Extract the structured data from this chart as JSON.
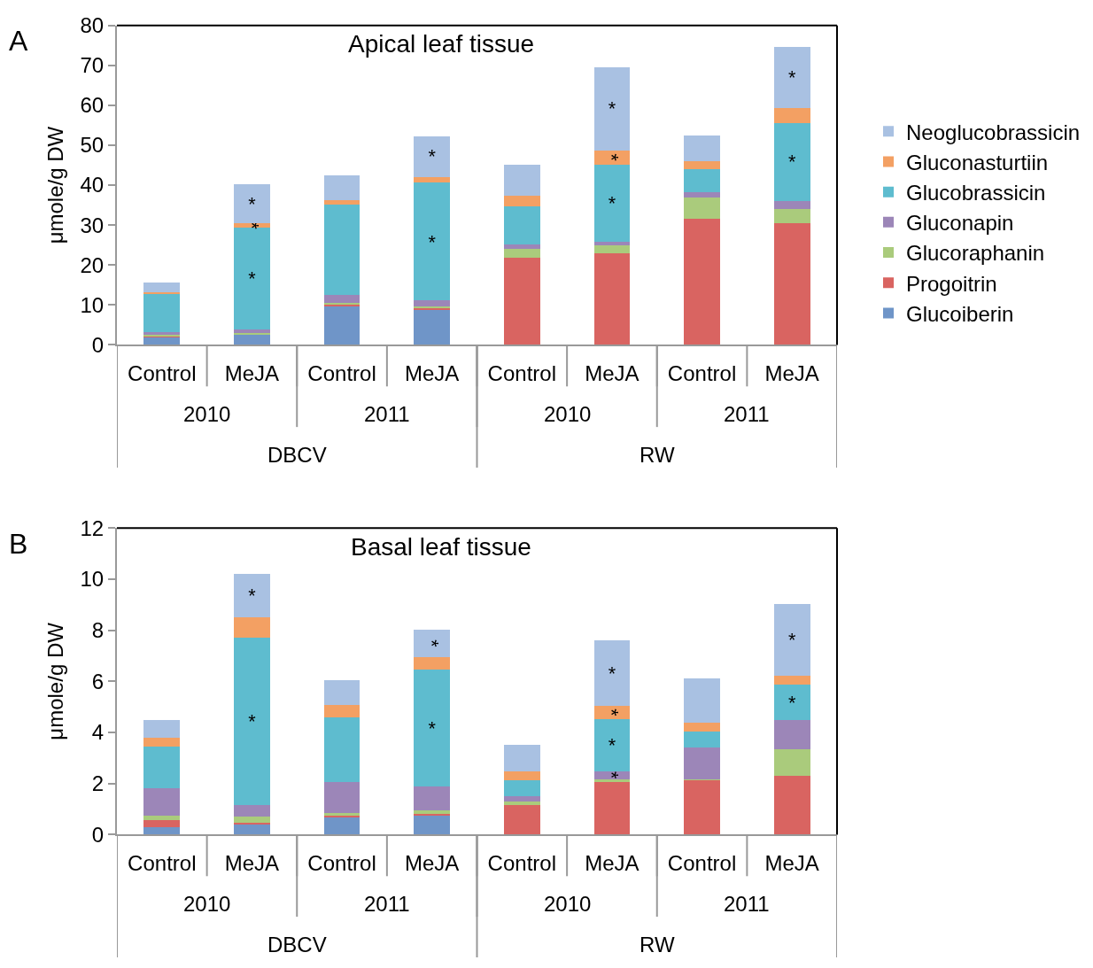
{
  "chart_data": [
    {
      "type": "bar",
      "title": "Apical leaf tissue",
      "ylabel": "μmole/g DW",
      "stacked": true,
      "legend": "right",
      "ylim": [
        0,
        80
      ],
      "yticks": [
        0,
        10,
        20,
        30,
        40,
        50,
        60,
        70,
        80
      ],
      "categories": [
        "Control",
        "MeJA",
        "Control",
        "MeJA",
        "Control",
        "MeJA",
        "Control",
        "MeJA"
      ],
      "annotations": [
        "A",
        "2010",
        "2011",
        "2010",
        "2011",
        "DBCV",
        "RW"
      ],
      "series": [
        {
          "name": "Glucoiberin",
          "color": "#6f95c8",
          "values": [
            2.0,
            2.7,
            9.6,
            9.0,
            0,
            0,
            0,
            0
          ],
          "value_labels": [
            null,
            null,
            null,
            null,
            null,
            null,
            null,
            null
          ]
        },
        {
          "name": "Progoitrin",
          "color": "#d96461",
          "values": [
            0.1,
            null,
            0.5,
            0.4,
            21.9,
            22.9,
            31.6,
            30.5
          ],
          "value_labels": [
            null,
            null,
            null,
            null,
            null,
            null,
            null,
            null
          ]
        },
        {
          "name": "Glucoraphanin",
          "color": "#aacb7c",
          "values": [
            0.5,
            0.2,
            0.5,
            0.3,
            2.2,
            2.1,
            5.4,
            3.5
          ],
          "value_labels": [
            null,
            null,
            null,
            null,
            null,
            null,
            null,
            null
          ]
        },
        {
          "name": "Gluconapin",
          "color": "#9c86b8",
          "values": [
            0.7,
            0.9,
            2.0,
            1.4,
            1.1,
            0.9,
            1.2,
            2.1
          ],
          "value_labels": [
            null,
            null,
            null,
            null,
            null,
            null,
            null,
            null
          ]
        },
        {
          "name": "Glucobrassicin",
          "color": "#5ebccf",
          "values": [
            9.4,
            25.6,
            22.5,
            29.5,
            9.6,
            19.3,
            5.9,
            19.5
          ],
          "value_labels": [
            null,
            "*",
            null,
            "*",
            null,
            "*",
            null,
            "*"
          ]
        },
        {
          "name": "Gluconasturtiin",
          "color": "#f3a063",
          "values": [
            0.5,
            1.0,
            1.2,
            1.5,
            2.5,
            3.5,
            2.0,
            3.6
          ],
          "value_labels": [
            null,
            "*",
            null,
            null,
            null,
            "*",
            null,
            null
          ]
        },
        {
          "name": "Neoglucobrassicin",
          "color": "#a9c1e2",
          "values": [
            2.4,
            9.9,
            6.1,
            10.2,
            7.9,
            20.9,
            6.3,
            15.4
          ],
          "value_labels": [
            null,
            "*",
            null,
            "*",
            null,
            "*",
            null,
            "*"
          ]
        }
      ]
    },
    {
      "type": "bar",
      "title": "Basal leaf tissue",
      "ylabel": "μmole/g DW",
      "stacked": true,
      "ylim": [
        0,
        12
      ],
      "yticks": [
        0,
        2,
        4,
        6,
        8,
        10,
        12
      ],
      "categories": [
        "Control",
        "MeJA",
        "Control",
        "MeJA",
        "Control",
        "MeJA",
        "Control",
        "MeJA"
      ],
      "annotations": [
        "B",
        "2010",
        "2011",
        "2010",
        "2011",
        "DBCV",
        "RW"
      ],
      "series": [
        {
          "color": "#6f95c8",
          "values": [
            0.28,
            0.4,
            0.68,
            0.77,
            0,
            0,
            0,
            0
          ],
          "value_labels": [
            null,
            null,
            null,
            null,
            null,
            null,
            null,
            null
          ]
        },
        {
          "color": "#d96461",
          "values": [
            0.29,
            0.06,
            0.05,
            0.06,
            1.17,
            2.06,
            2.13,
            2.31
          ],
          "value_labels": [
            null,
            null,
            null,
            null,
            null,
            null,
            null,
            null
          ]
        },
        {
          "color": "#aacb7c",
          "values": [
            0.17,
            0.25,
            0.12,
            0.12,
            0.13,
            0.11,
            0.05,
            1.02
          ],
          "value_labels": [
            null,
            null,
            null,
            null,
            null,
            null,
            null,
            null
          ]
        },
        {
          "color": "#9c86b8",
          "values": [
            1.07,
            0.45,
            1.22,
            0.94,
            0.2,
            0.32,
            1.25,
            1.16
          ],
          "value_labels": [
            null,
            null,
            null,
            null,
            null,
            "*",
            null,
            null
          ]
        },
        {
          "color": "#5ebccf",
          "values": [
            1.64,
            6.55,
            2.51,
            4.56,
            0.64,
            2.04,
            0.61,
            1.37
          ],
          "value_labels": [
            null,
            "*",
            null,
            "*",
            null,
            "*",
            null,
            "*"
          ]
        },
        {
          "color": "#f3a063",
          "values": [
            0.36,
            0.8,
            0.48,
            0.51,
            0.34,
            0.5,
            0.34,
            0.35
          ],
          "value_labels": [
            null,
            null,
            null,
            null,
            null,
            "*",
            null,
            null
          ]
        },
        {
          "color": "#a9c1e2",
          "values": [
            0.69,
            1.7,
            0.99,
            1.05,
            1.05,
            2.58,
            1.74,
            2.83
          ],
          "value_labels": [
            null,
            "*",
            null,
            "*",
            null,
            "*",
            null,
            "*"
          ]
        }
      ]
    }
  ]
}
